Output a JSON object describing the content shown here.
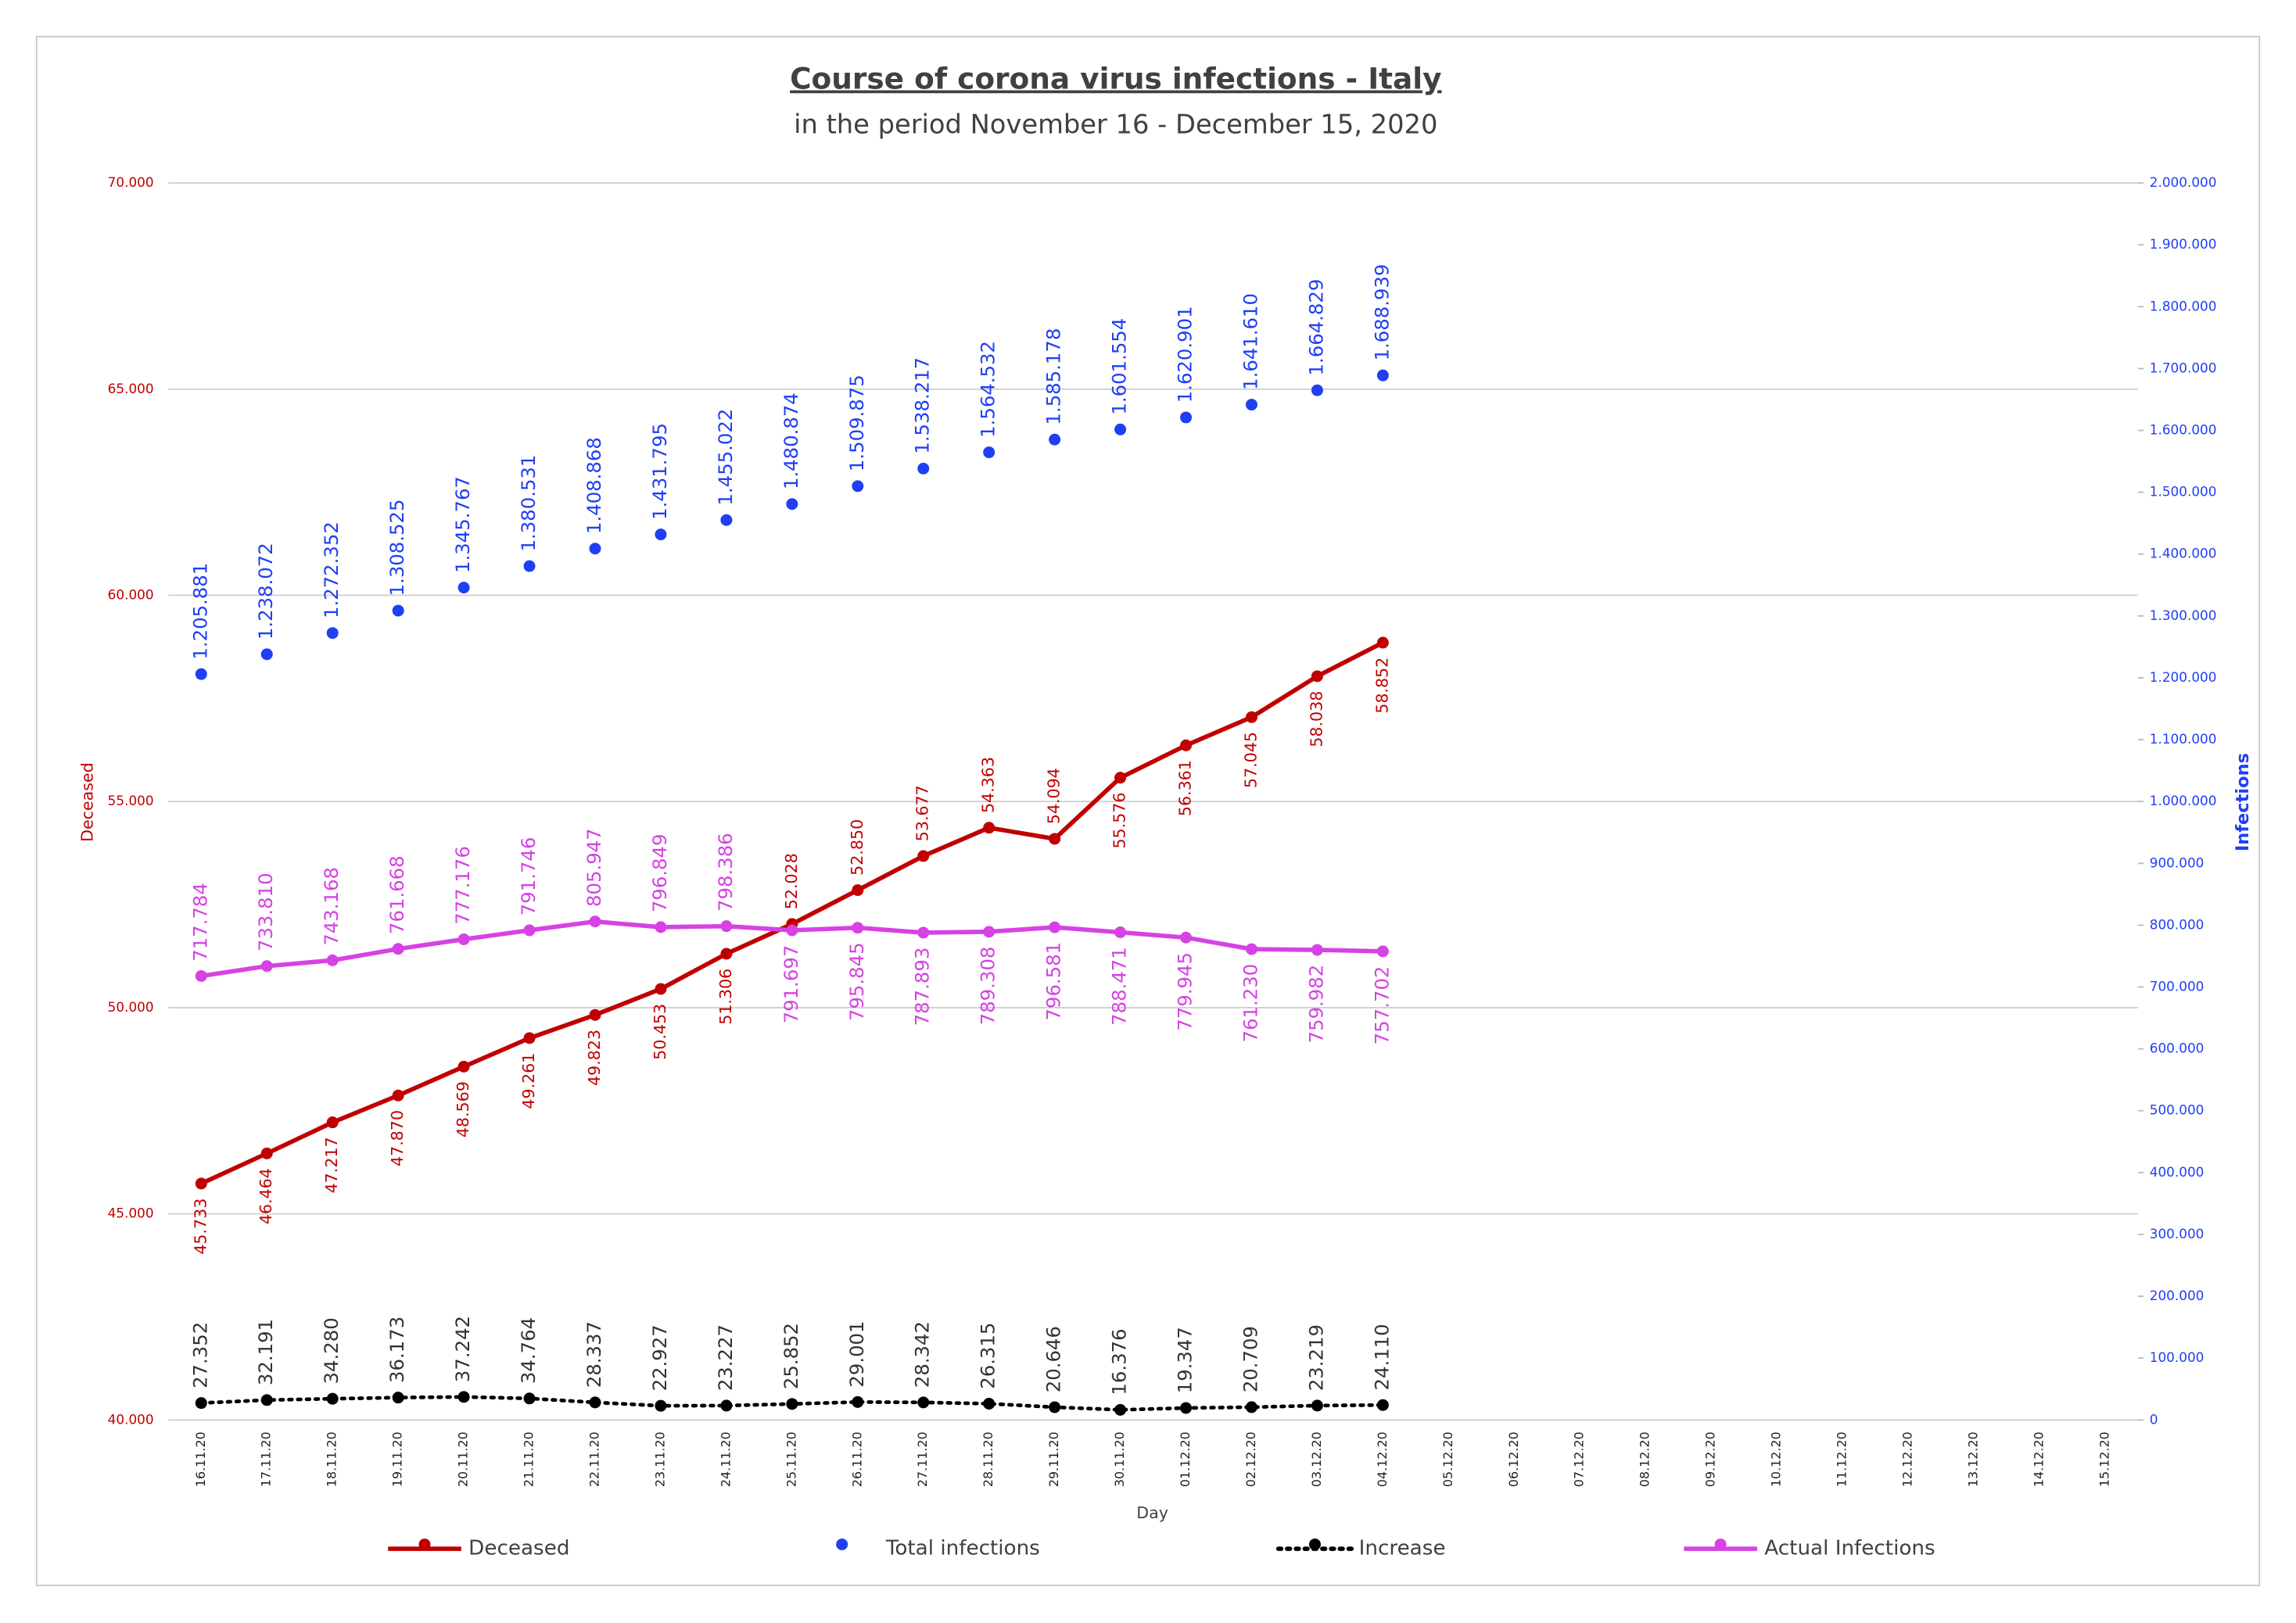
{
  "chart_data": {
    "type": "line",
    "title": "Course of corona virus infections - Italy",
    "subtitle": "in the period November 16 - December 15, 2020",
    "x_label": "Day",
    "y_label": "Deceased",
    "y2_label": "Infections",
    "categories": [
      "16.11.20",
      "17.11.20",
      "18.11.20",
      "19.11.20",
      "20.11.20",
      "21.11.20",
      "22.11.20",
      "23.11.20",
      "24.11.20",
      "25.11.20",
      "26.11.20",
      "27.11.20",
      "28.11.20",
      "29.11.20",
      "30.11.20",
      "01.12.20",
      "02.12.20",
      "03.12.20",
      "04.12.20",
      "05.12.20",
      "06.12.20",
      "07.12.20",
      "08.12.20",
      "09.12.20",
      "10.12.20",
      "11.12.20",
      "12.12.20",
      "13.12.20",
      "14.12.20",
      "15.12.20"
    ],
    "ylim": [
      40000,
      70000
    ],
    "yticks": [
      {
        "value": 40000,
        "label": "40.000"
      },
      {
        "value": 45000,
        "label": "45.000"
      },
      {
        "value": 50000,
        "label": "50.000"
      },
      {
        "value": 55000,
        "label": "55.000"
      },
      {
        "value": 60000,
        "label": "60.000"
      },
      {
        "value": 65000,
        "label": "65.000"
      },
      {
        "value": 70000,
        "label": "70.000"
      }
    ],
    "y2lim": [
      0,
      2000000
    ],
    "y2ticks": [
      0,
      {
        "value": 100000,
        "label": "100.000"
      },
      {
        "value": 200000,
        "label": "200.000"
      },
      {
        "value": 300000,
        "label": "300.000"
      },
      {
        "value": 400000,
        "label": "400.000"
      },
      {
        "value": 500000,
        "label": "500.000"
      },
      {
        "value": 600000,
        "label": "600.000"
      },
      {
        "value": 700000,
        "label": "700.000"
      },
      {
        "value": 800000,
        "label": "800.000"
      },
      {
        "value": 900000,
        "label": "900.000"
      },
      {
        "value": 1000000,
        "label": "1.000.000"
      },
      {
        "value": 1100000,
        "label": "1.100.000"
      },
      {
        "value": 1200000,
        "label": "1.200.000"
      },
      {
        "value": 1300000,
        "label": "1.300.000"
      },
      {
        "value": 1400000,
        "label": "1.400.000"
      },
      {
        "value": 1500000,
        "label": "1.500.000"
      },
      {
        "value": 1600000,
        "label": "1.600.000"
      },
      {
        "value": 1700000,
        "label": "1.700.000"
      },
      {
        "value": 1800000,
        "label": "1.800.000"
      },
      {
        "value": 1900000,
        "label": "1.900.000"
      },
      {
        "value": 2000000,
        "label": "2.000.000"
      }
    ],
    "grid": true,
    "series": [
      {
        "name": "Deceased",
        "color": "#c00000",
        "line": "solid",
        "values": [
          45733,
          46464,
          47217,
          47870,
          48569,
          49261,
          49823,
          50453,
          51306,
          52028,
          52850,
          53677,
          54363,
          54094,
          55576,
          56361,
          57045,
          58038,
          58852,
          null,
          null,
          null,
          null,
          null,
          null,
          null,
          null,
          null,
          null,
          null
        ],
        "value_labels": [
          "45.733",
          "46.464",
          "47.217",
          "47.870",
          "48.569",
          "49.261",
          "49.823",
          "50.453",
          "51.306",
          "52.028",
          "52.850",
          "53.677",
          "54.363",
          "54.094",
          "55.576",
          "56.361",
          "57.045",
          "58.038",
          "58.852",
          null,
          null,
          null,
          null,
          null,
          null,
          null,
          null,
          null,
          null,
          null
        ]
      },
      {
        "name": "Total infections",
        "color": "#1f3ff5",
        "line": "none",
        "axis": "y2",
        "values": [
          1205881,
          1238072,
          1272352,
          1308525,
          1345767,
          1380531,
          1408868,
          1431795,
          1455022,
          1480874,
          1509875,
          1538217,
          1564532,
          1585178,
          1601554,
          1620901,
          1641610,
          1664829,
          1688939,
          null,
          null,
          null,
          null,
          null,
          null,
          null,
          null,
          null,
          null,
          null
        ],
        "value_labels": [
          "1.205.881",
          "1.238.072",
          "1.272.352",
          "1.308.525",
          "1.345.767",
          "1.380.531",
          "1.408.868",
          "1.431.795",
          "1.455.022",
          "1.480.874",
          "1.509.875",
          "1.538.217",
          "1.564.532",
          "1.585.178",
          "1.601.554",
          "1.620.901",
          "1.641.610",
          "1.664.829",
          "1.688.939",
          null,
          null,
          null,
          null,
          null,
          null,
          null,
          null,
          null,
          null,
          null
        ]
      },
      {
        "name": "Increase",
        "color": "#000000",
        "line": "dotted",
        "axis": "y2",
        "values": [
          27352,
          32191,
          34280,
          36173,
          37242,
          34764,
          28337,
          22927,
          23227,
          25852,
          29001,
          28342,
          26315,
          20646,
          16376,
          19347,
          20709,
          23219,
          24110,
          null,
          null,
          null,
          null,
          null,
          null,
          null,
          null,
          null,
          null,
          null
        ],
        "value_labels": [
          "27.352",
          "32.191",
          "34.280",
          "36.173",
          "37.242",
          "34.764",
          "28.337",
          "22.927",
          "23.227",
          "25.852",
          "29.001",
          "28.342",
          "26.315",
          "20.646",
          "16.376",
          "19.347",
          "20.709",
          "23.219",
          "24.110",
          null,
          null,
          null,
          null,
          null,
          null,
          null,
          null,
          null,
          null,
          null
        ]
      },
      {
        "name": "Actual Infections",
        "color": "#d642e3",
        "line": "solid",
        "axis": "y2",
        "values": [
          717784,
          733810,
          743168,
          761668,
          777176,
          791746,
          805947,
          796849,
          798386,
          791697,
          795845,
          787893,
          789308,
          796581,
          788471,
          779945,
          761230,
          759982,
          757702,
          null,
          null,
          null,
          null,
          null,
          null,
          null,
          null,
          null,
          null,
          null
        ],
        "value_labels": [
          "717.784",
          "733.810",
          "743.168",
          "761.668",
          "777.176",
          "791.746",
          "805.947",
          "796.849",
          "798.386",
          "791.697",
          "795.845",
          "787.893",
          "789.308",
          "796.581",
          "788.471",
          "779.945",
          "761.230",
          "759.982",
          "757.702",
          null,
          null,
          null,
          null,
          null,
          null,
          null,
          null,
          null,
          null,
          null
        ]
      }
    ]
  }
}
